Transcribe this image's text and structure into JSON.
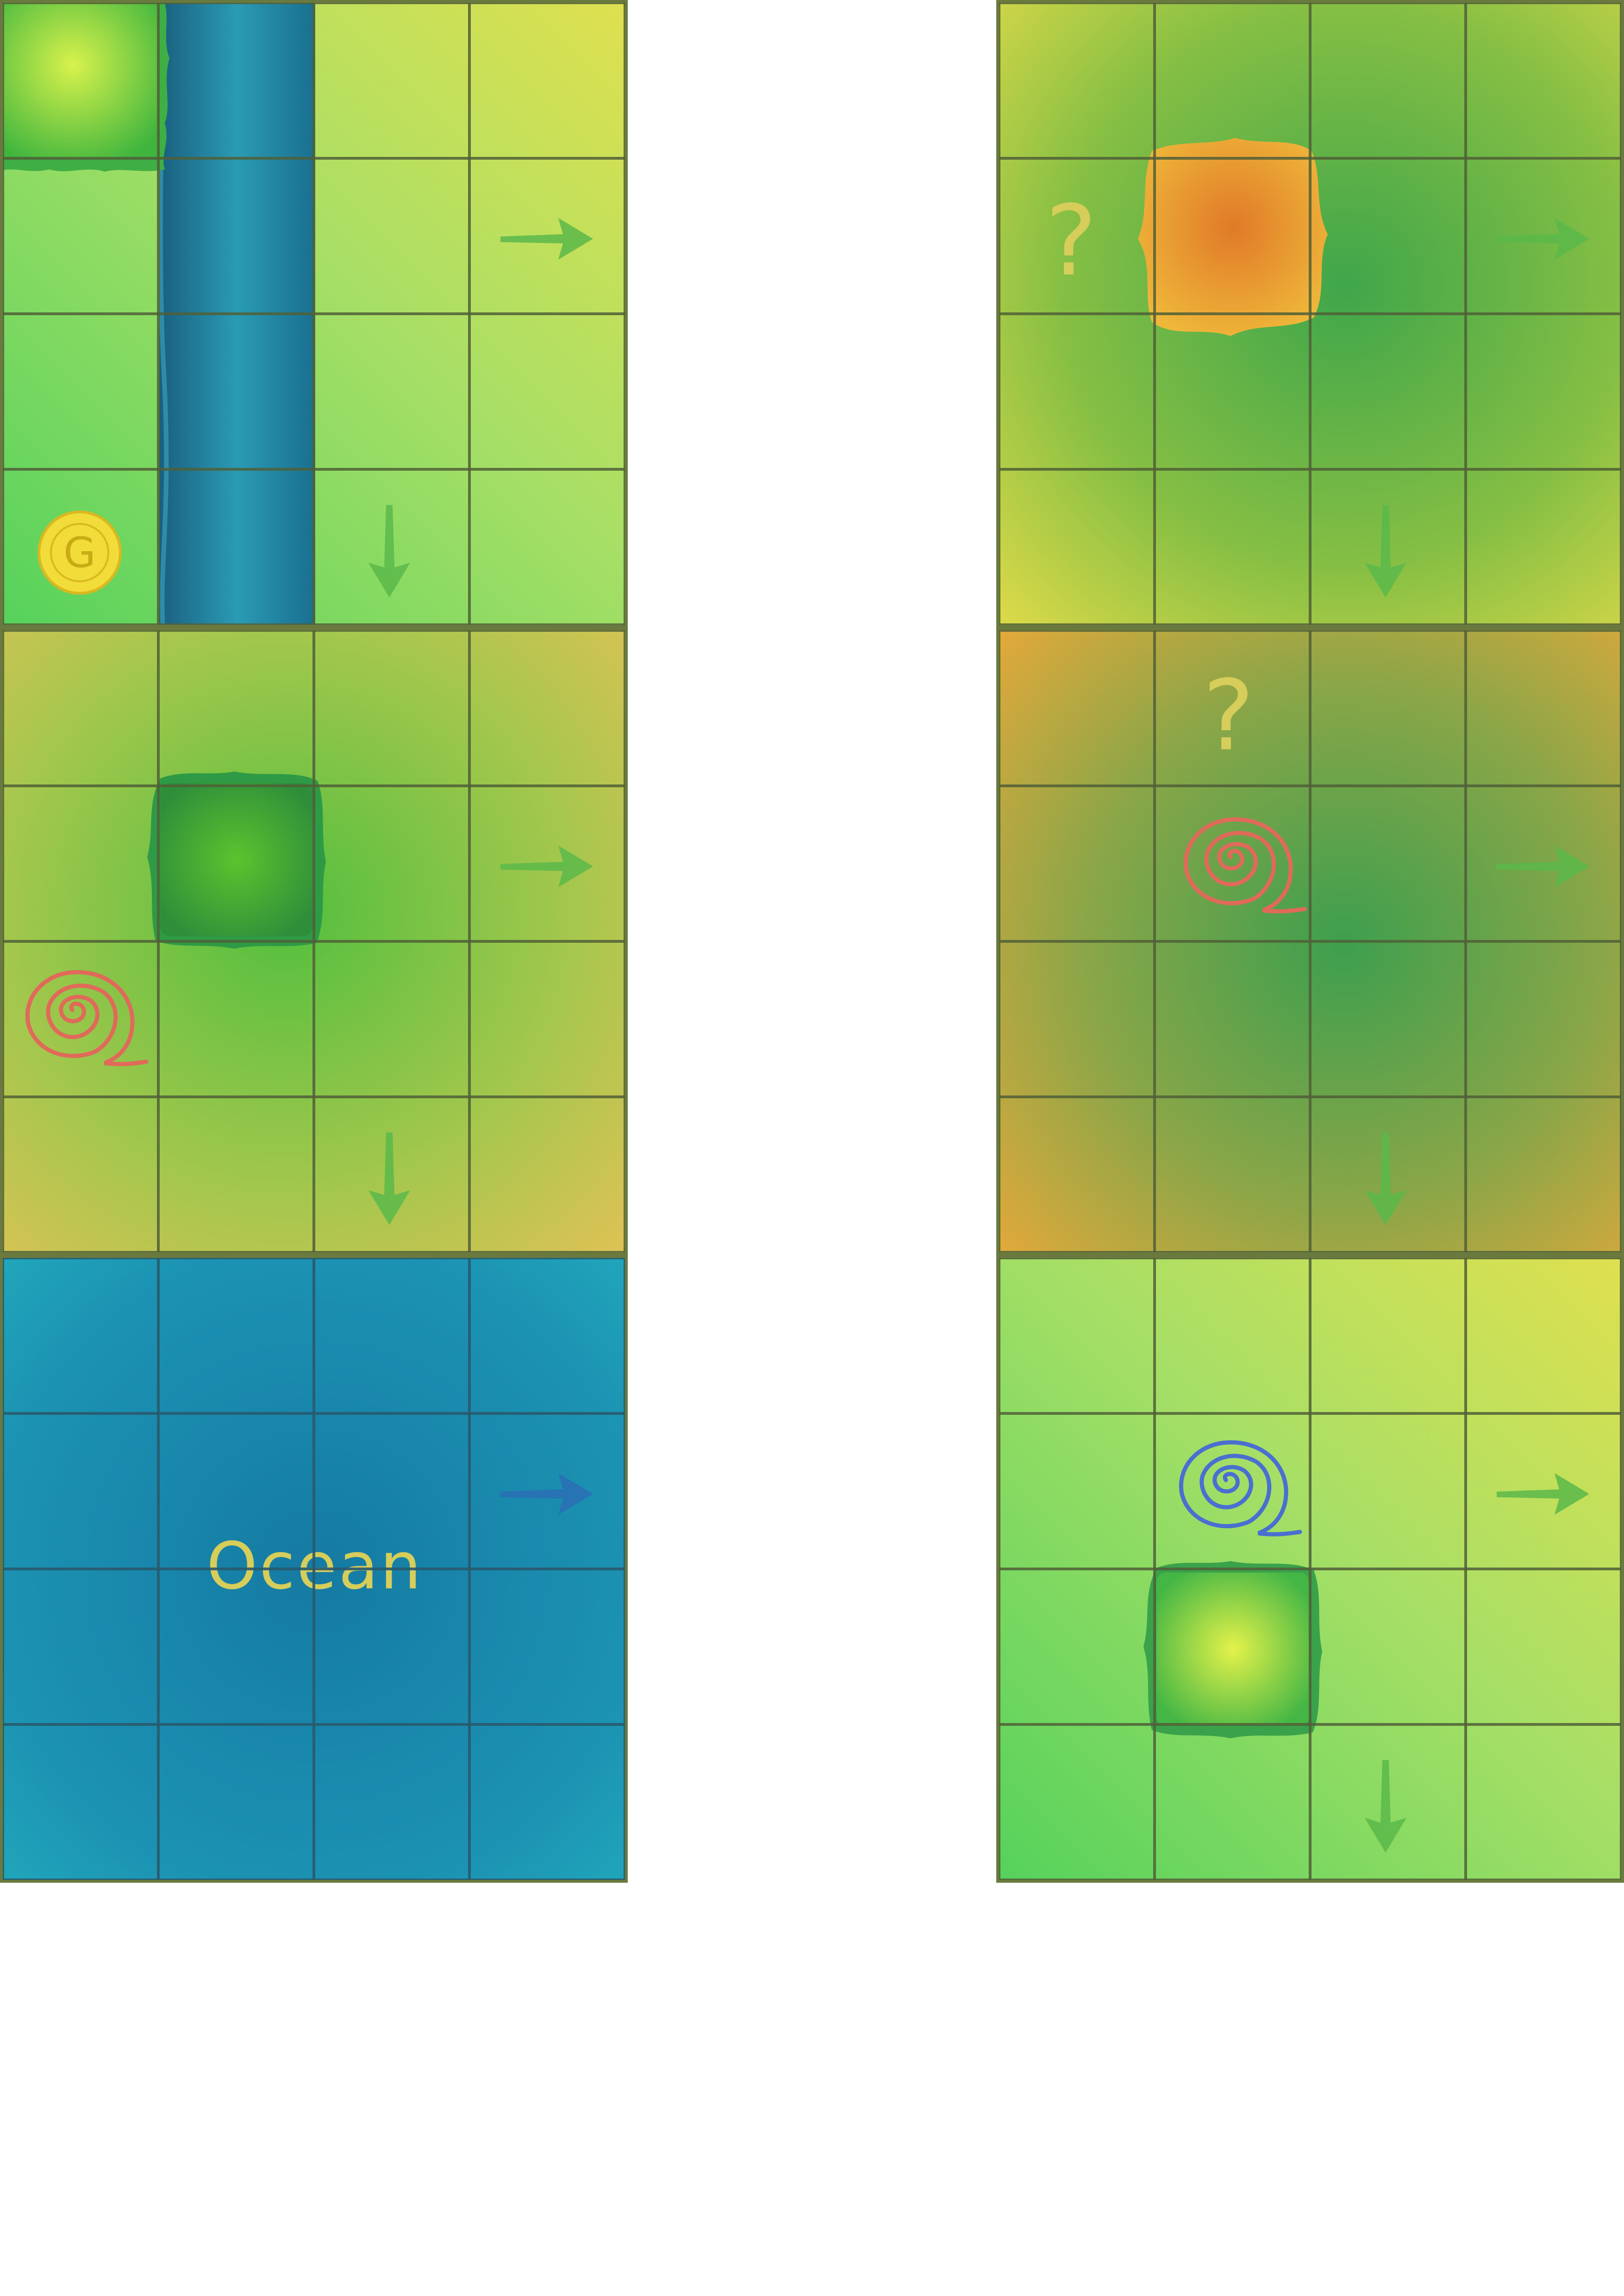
{
  "tiles": [
    {
      "id": "tl",
      "question_mark": "",
      "label": ""
    },
    {
      "id": "ml",
      "question_mark": "",
      "label": ""
    },
    {
      "id": "bl",
      "question_mark": "",
      "label": "Ocean"
    },
    {
      "id": "tr",
      "question_mark": "?",
      "label": ""
    },
    {
      "id": "mr",
      "question_mark": "?",
      "label": ""
    },
    {
      "id": "br",
      "question_mark": "",
      "label": ""
    }
  ],
  "coin": {
    "letter": "G",
    "color": "#f2dc3a"
  },
  "icons": {
    "arrow": "arrow-icon",
    "spiral": "spiral-icon",
    "coin": "coin-icon",
    "forest": "forest-patch",
    "river": "river-strip"
  },
  "colors": {
    "grid_line": "#6a7a3e",
    "spiral_red": "#e06a5a",
    "spiral_blue": "#4a6fd0",
    "question": "#d6cd5a",
    "ocean": "#1a7fa8",
    "river": "#1f8fa9"
  }
}
